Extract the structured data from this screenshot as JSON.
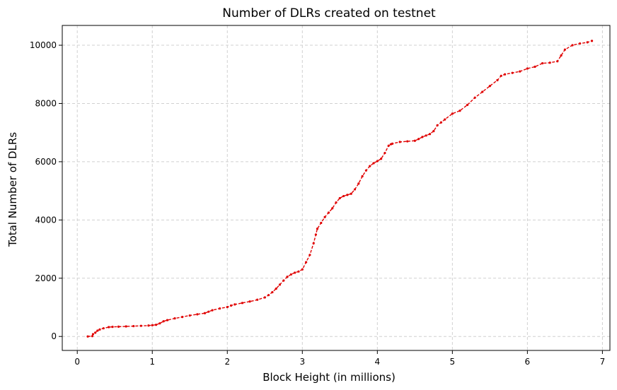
{
  "chart_data": {
    "type": "line",
    "title": "Number of DLRs created on testnet",
    "xlabel": "Block Height (in millions)",
    "ylabel": "Total Number of DLRs",
    "xlim": [
      -0.2,
      7.1
    ],
    "ylim": [
      -480,
      10680
    ],
    "xticks": [
      0,
      1,
      2,
      3,
      4,
      5,
      6,
      7
    ],
    "yticks": [
      0,
      2000,
      4000,
      6000,
      8000,
      10000
    ],
    "grid": true,
    "series_color": "#e00000",
    "line_style": "dashed",
    "marker": "dot",
    "series": [
      {
        "x": [
          0.14,
          0.2,
          0.21,
          0.24,
          0.27,
          0.3,
          0.35,
          0.42,
          0.47,
          0.55,
          0.65,
          0.75,
          0.85,
          0.95,
          1.0,
          1.05,
          1.1,
          1.15,
          1.2,
          1.3,
          1.4,
          1.5,
          1.6,
          1.7,
          1.75,
          1.8,
          1.9,
          2.0,
          2.05,
          2.1,
          2.2,
          2.3,
          2.4,
          2.5,
          2.55,
          2.6,
          2.65,
          2.7,
          2.75,
          2.8,
          2.85,
          2.9,
          2.95,
          3.0,
          3.05,
          3.1,
          3.15,
          3.18,
          3.2,
          3.25,
          3.3,
          3.35,
          3.4,
          3.45,
          3.5,
          3.55,
          3.6,
          3.65,
          3.7,
          3.75,
          3.8,
          3.85,
          3.9,
          3.95,
          4.0,
          4.05,
          4.1,
          4.15,
          4.18,
          4.2,
          4.3,
          4.4,
          4.5,
          4.55,
          4.6,
          4.65,
          4.7,
          4.75,
          4.8,
          4.85,
          4.9,
          5.0,
          5.1,
          5.2,
          5.3,
          5.4,
          5.5,
          5.6,
          5.65,
          5.7,
          5.8,
          5.9,
          6.0,
          6.1,
          6.2,
          6.3,
          6.4,
          6.45,
          6.5,
          6.6,
          6.7,
          6.8,
          6.86
        ],
        "y": [
          0,
          10,
          80,
          130,
          200,
          240,
          280,
          320,
          330,
          335,
          345,
          355,
          365,
          375,
          385,
          400,
          450,
          520,
          560,
          620,
          670,
          720,
          760,
          800,
          850,
          900,
          960,
          1010,
          1060,
          1100,
          1150,
          1200,
          1260,
          1340,
          1420,
          1520,
          1640,
          1780,
          1920,
          2050,
          2130,
          2190,
          2230,
          2300,
          2550,
          2800,
          3200,
          3500,
          3700,
          3900,
          4100,
          4250,
          4400,
          4600,
          4750,
          4820,
          4860,
          4900,
          5050,
          5250,
          5500,
          5700,
          5850,
          5950,
          6020,
          6100,
          6300,
          6550,
          6600,
          6620,
          6680,
          6700,
          6720,
          6780,
          6850,
          6900,
          6950,
          7050,
          7250,
          7350,
          7450,
          7650,
          7750,
          7950,
          8200,
          8400,
          8600,
          8800,
          8950,
          9000,
          9050,
          9100,
          9200,
          9260,
          9380,
          9400,
          9450,
          9650,
          9850,
          10000,
          10060,
          10100,
          10150
        ]
      }
    ]
  }
}
